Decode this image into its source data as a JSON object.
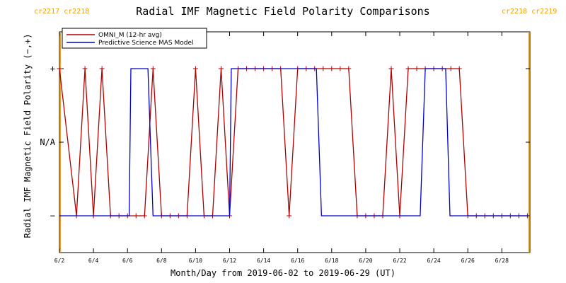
{
  "chart_data": {
    "type": "line",
    "title": "Radial IMF Magnetic Field Polarity Comparisons",
    "xlabel": "Month/Day from 2019-06-02 to 2019-06-29 (UT)",
    "ylabel": "Radial IMF Magnetic Field Polarity (−,+)",
    "xlim": [
      2.0,
      29.65
    ],
    "ylim": [
      -1.5,
      1.5
    ],
    "y_ticks": [
      {
        "value": 1,
        "label": "+"
      },
      {
        "value": 0,
        "label": "N/A"
      },
      {
        "value": -1,
        "label": "−"
      }
    ],
    "x_ticks": [
      {
        "value": 2,
        "label": "6/2"
      },
      {
        "value": 4,
        "label": "6/4"
      },
      {
        "value": 6,
        "label": "6/6"
      },
      {
        "value": 8,
        "label": "6/8"
      },
      {
        "value": 10,
        "label": "6/10"
      },
      {
        "value": 12,
        "label": "6/12"
      },
      {
        "value": 14,
        "label": "6/14"
      },
      {
        "value": 16,
        "label": "6/16"
      },
      {
        "value": 18,
        "label": "6/18"
      },
      {
        "value": 20,
        "label": "6/20"
      },
      {
        "value": 22,
        "label": "6/22"
      },
      {
        "value": 24,
        "label": "6/24"
      },
      {
        "value": 26,
        "label": "6/26"
      },
      {
        "value": 28,
        "label": "6/28"
      }
    ],
    "carrington_markers": [
      {
        "x": 2.05,
        "label": "cr2217 cr2218",
        "side": "left"
      },
      {
        "x": 29.6,
        "label": "cr2218 cr2219",
        "side": "right"
      }
    ],
    "legend": {
      "placement": "top-left"
    },
    "series": [
      {
        "name": "OMNI_M (12-hr avg)",
        "color": "#b00000",
        "markers": true,
        "x": [
          2.0,
          3.0,
          3.5,
          4.0,
          4.5,
          5.0,
          5.5,
          6.0,
          6.5,
          7.0,
          7.5,
          8.0,
          8.5,
          9.0,
          9.5,
          10.0,
          10.5,
          11.0,
          11.5,
          12.0,
          12.5,
          13.0,
          13.5,
          14.0,
          14.5,
          15.0,
          15.5,
          16.0,
          16.5,
          17.0,
          17.5,
          18.0,
          18.5,
          19.0,
          19.5,
          20.0,
          20.5,
          21.0,
          21.5,
          22.0,
          22.5,
          23.0,
          23.5,
          24.0,
          24.5,
          25.0,
          25.5,
          26.0,
          26.5,
          27.0,
          27.5,
          28.0,
          28.5,
          29.0,
          29.5
        ],
        "y": [
          1,
          -1,
          1,
          -1,
          1,
          -1,
          -1,
          -1,
          -1,
          -1,
          1,
          -1,
          -1,
          -1,
          -1,
          1,
          -1,
          -1,
          1,
          -1,
          1,
          1,
          1,
          1,
          1,
          1,
          -1,
          1,
          1,
          1,
          1,
          1,
          1,
          1,
          -1,
          -1,
          -1,
          -1,
          1,
          -1,
          1,
          1,
          1,
          1,
          1,
          1,
          1,
          -1,
          -1,
          -1,
          -1,
          -1,
          -1,
          -1,
          -1
        ]
      },
      {
        "name": "Predictive Science MAS Model",
        "color": "#0000cc",
        "markers": false,
        "x": [
          2.0,
          6.1,
          6.2,
          7.2,
          7.5,
          12.0,
          12.1,
          17.1,
          17.4,
          23.2,
          23.5,
          24.7,
          24.95,
          29.6
        ],
        "y": [
          -1,
          -1,
          1,
          1,
          -1,
          -1,
          1,
          1,
          -1,
          -1,
          1,
          1,
          -1,
          -1
        ]
      }
    ]
  }
}
